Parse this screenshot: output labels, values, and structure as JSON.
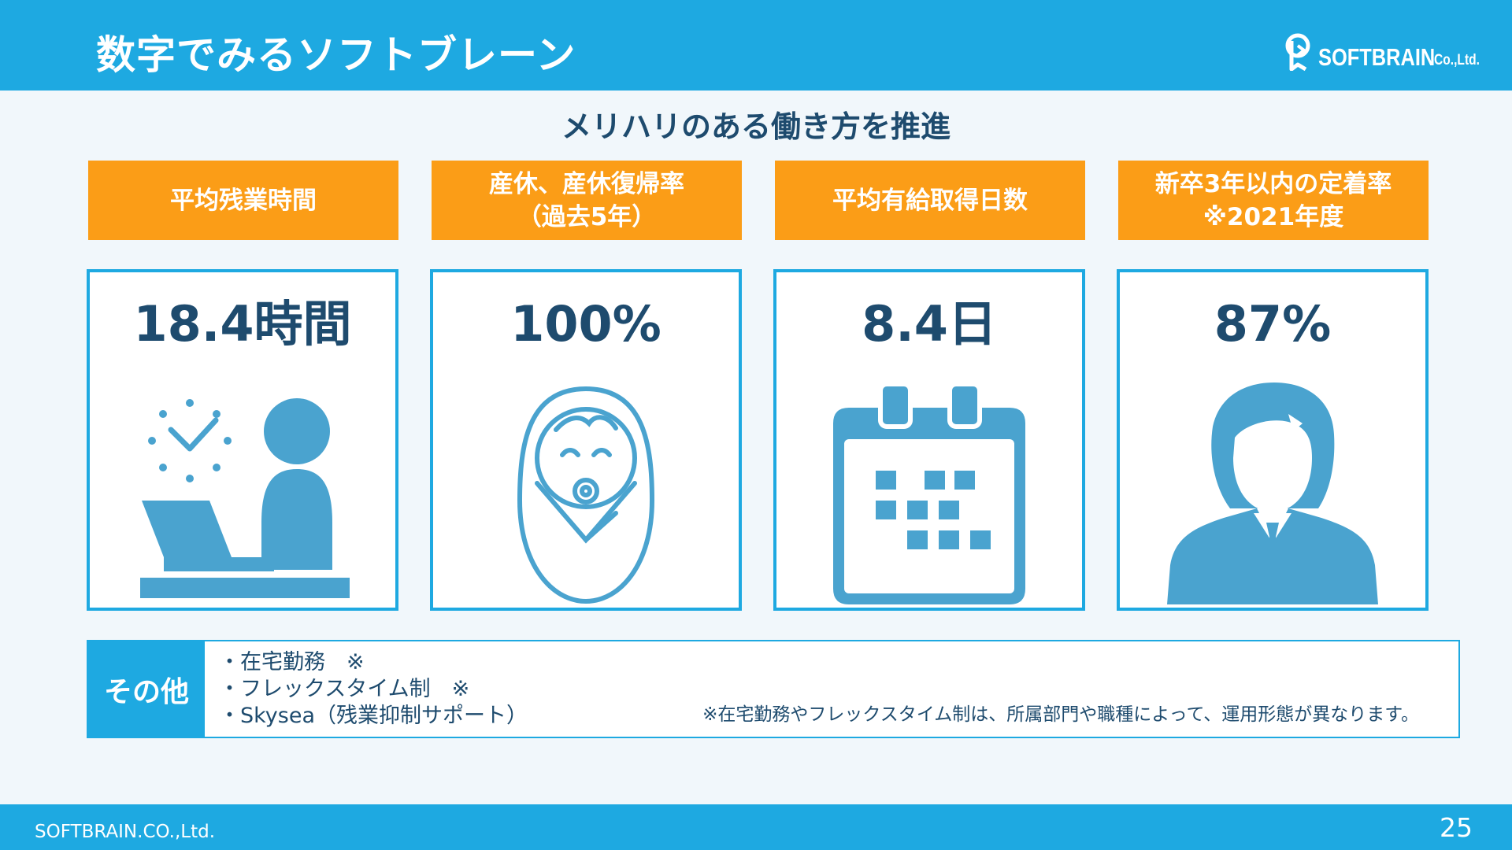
{
  "header": {
    "title": "数字でみるソフトブレーン",
    "logo_word": "SOFTBRAIN",
    "logo_suffix": "Co.,Ltd."
  },
  "subtitle": "メリハリのある働き方を推進",
  "cards": [
    {
      "heading": [
        "平均残業時間"
      ],
      "value": "18.4時間",
      "icon": "person-at-laptop-with-clock-icon"
    },
    {
      "heading": [
        "産休、産休復帰率",
        "（過去5年）"
      ],
      "value": "100%",
      "icon": "swaddled-baby-icon"
    },
    {
      "heading": [
        "平均有給取得日数"
      ],
      "value": "8.4日",
      "icon": "calendar-icon"
    },
    {
      "heading": [
        "新卒3年以内の定着率",
        "※2021年度"
      ],
      "value": "87%",
      "icon": "businessman-icon"
    }
  ],
  "other": {
    "label": "その他",
    "items": [
      "・在宅勤務　※",
      "・フレックスタイム制　※",
      "・Skysea（残業抑制サポート）"
    ],
    "note": "※在宅勤務やフレックスタイム制は、所属部門や職種によって、運用形態が異なります。"
  },
  "footer": {
    "company": "SOFTBRAIN.CO.,Ltd.",
    "page": "25"
  },
  "colors": {
    "accent_blue": "#1ea9e1",
    "accent_orange": "#fb9d17",
    "icon_blue": "#4aa3cf",
    "text_navy": "#1e4b6e"
  }
}
